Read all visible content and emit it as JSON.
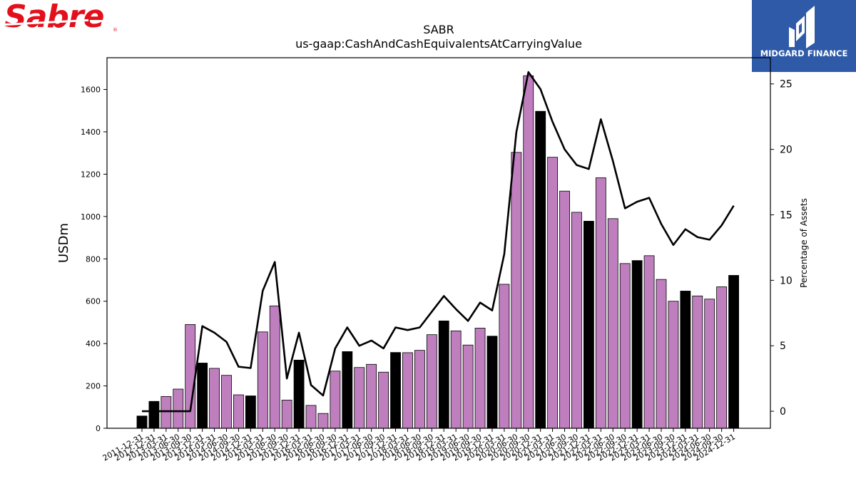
{
  "branding": {
    "logo_text": "Sabre",
    "logo_reg": "®",
    "watermark_text": "MIDGARD FINANCE",
    "logo_color": "#e3101b",
    "watermark_bg": "#2e5aa8"
  },
  "chart_data": {
    "type": "bar",
    "title": "SABR",
    "subtitle": "us-gaap:CashAndCashEquivalentsAtCarryingValue",
    "ylabel": "USDm",
    "y2label": "Percentage of Assets",
    "ylim": [
      0,
      1750
    ],
    "y2lim": [
      -1.3,
      27.0
    ],
    "yticks": [
      0,
      200,
      400,
      600,
      800,
      1000,
      1200,
      1400,
      1600
    ],
    "y2ticks": [
      0,
      5,
      10,
      15,
      20,
      25
    ],
    "grid": false,
    "colors": {
      "bar_annual": "#000000",
      "bar_quarter": "#bf7fbf",
      "line": "#000000"
    },
    "categories": [
      "2011-12-31",
      "2012-12-31",
      "2013-03-31",
      "2013-06-30",
      "2013-09-30",
      "2013-12-31",
      "2014-03-31",
      "2014-06-30",
      "2014-09-30",
      "2014-12-31",
      "2015-03-31",
      "2015-06-30",
      "2015-09-30",
      "2015-12-31",
      "2016-03-31",
      "2016-06-30",
      "2016-09-30",
      "2016-12-31",
      "2017-03-31",
      "2017-06-30",
      "2017-09-30",
      "2017-12-31",
      "2018-03-31",
      "2018-06-30",
      "2018-09-30",
      "2018-12-31",
      "2019-03-31",
      "2019-06-30",
      "2019-09-30",
      "2019-12-31",
      "2020-03-31",
      "2020-06-30",
      "2020-09-30",
      "2020-12-31",
      "2021-03-31",
      "2021-06-30",
      "2021-09-30",
      "2021-12-31",
      "2022-03-31",
      "2022-06-30",
      "2022-09-30",
      "2022-12-31",
      "2023-03-31",
      "2023-06-30",
      "2023-09-30",
      "2023-12-31",
      "2024-03-31",
      "2024-06-30",
      "2024-09-30",
      "2024-12-31"
    ],
    "series": [
      {
        "type": "bar",
        "values": [
          58,
          127,
          150,
          185,
          490,
          308,
          283,
          250,
          158,
          153,
          455,
          578,
          133,
          322,
          108,
          70,
          270,
          362,
          287,
          302,
          265,
          358,
          357,
          368,
          442,
          507,
          460,
          393,
          473,
          435,
          680,
          1303,
          1665,
          1497,
          1280,
          1120,
          1020,
          978,
          1183,
          990,
          778,
          792,
          815,
          703,
          600,
          648,
          625,
          610,
          668,
          722
        ],
        "annual": [
          true,
          true,
          false,
          false,
          false,
          true,
          false,
          false,
          false,
          true,
          false,
          false,
          false,
          true,
          false,
          false,
          false,
          true,
          false,
          false,
          false,
          true,
          false,
          false,
          false,
          true,
          false,
          false,
          false,
          true,
          false,
          false,
          false,
          true,
          false,
          false,
          false,
          true,
          false,
          false,
          false,
          true,
          false,
          false,
          false,
          true,
          false,
          false,
          false,
          true
        ]
      },
      {
        "type": "line",
        "axis": "right",
        "values": [
          0,
          0,
          0,
          0,
          0,
          6.5,
          6.0,
          5.3,
          3.4,
          3.3,
          9.2,
          11.4,
          2.5,
          6.0,
          2.0,
          1.2,
          4.8,
          6.4,
          5.0,
          5.4,
          4.8,
          6.4,
          6.2,
          6.4,
          7.6,
          8.8,
          7.8,
          6.9,
          8.3,
          7.7,
          12.0,
          21.3,
          25.9,
          24.6,
          22.1,
          20.0,
          18.8,
          18.5,
          22.3,
          19.1,
          15.5,
          16.0,
          16.3,
          14.3,
          12.7,
          13.9,
          13.3,
          13.1,
          14.2,
          15.7
        ]
      }
    ]
  }
}
